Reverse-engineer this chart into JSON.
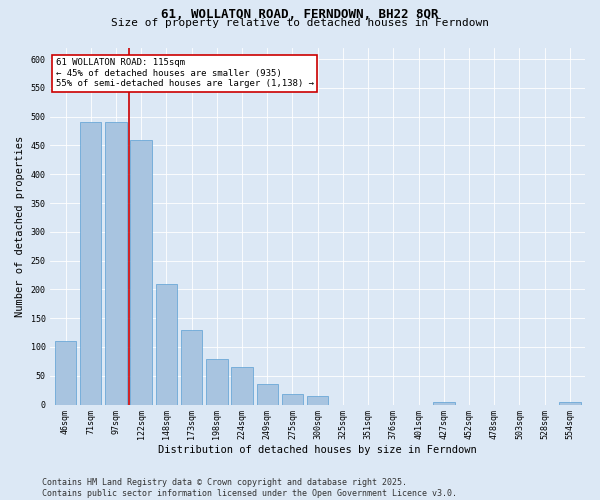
{
  "title": "61, WOLLATON ROAD, FERNDOWN, BH22 8QR",
  "subtitle": "Size of property relative to detached houses in Ferndown",
  "xlabel": "Distribution of detached houses by size in Ferndown",
  "ylabel": "Number of detached properties",
  "categories": [
    "46sqm",
    "71sqm",
    "97sqm",
    "122sqm",
    "148sqm",
    "173sqm",
    "198sqm",
    "224sqm",
    "249sqm",
    "275sqm",
    "300sqm",
    "325sqm",
    "351sqm",
    "376sqm",
    "401sqm",
    "427sqm",
    "452sqm",
    "478sqm",
    "503sqm",
    "528sqm",
    "554sqm"
  ],
  "values": [
    110,
    490,
    490,
    460,
    210,
    130,
    80,
    65,
    35,
    18,
    15,
    0,
    0,
    0,
    0,
    5,
    0,
    0,
    0,
    0,
    5
  ],
  "bar_color": "#a8c4e0",
  "bar_edge_color": "#5a9fd4",
  "vline_color": "#cc0000",
  "vline_x_index": 2.5,
  "annotation_text": "61 WOLLATON ROAD: 115sqm\n← 45% of detached houses are smaller (935)\n55% of semi-detached houses are larger (1,138) →",
  "annotation_box_color": "#ffffff",
  "annotation_box_edge": "#cc0000",
  "ylim": [
    0,
    620
  ],
  "yticks": [
    0,
    50,
    100,
    150,
    200,
    250,
    300,
    350,
    400,
    450,
    500,
    550,
    600
  ],
  "footer_text": "Contains HM Land Registry data © Crown copyright and database right 2025.\nContains public sector information licensed under the Open Government Licence v3.0.",
  "background_color": "#dce8f5",
  "plot_bg_color": "#dce8f5",
  "title_fontsize": 9,
  "subtitle_fontsize": 8,
  "tick_fontsize": 6,
  "label_fontsize": 7.5,
  "footer_fontsize": 6,
  "annotation_fontsize": 6.5
}
